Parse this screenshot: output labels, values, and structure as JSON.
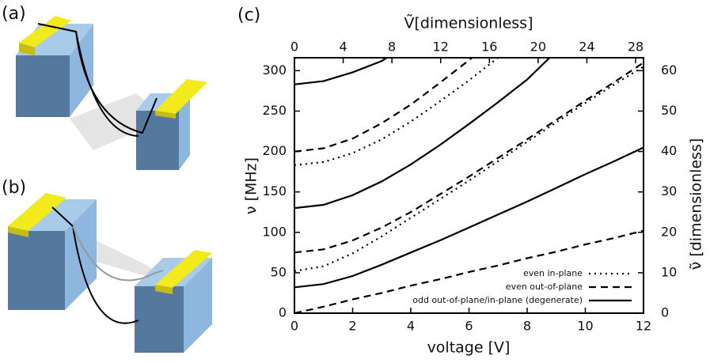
{
  "panels": {
    "a": "(a)",
    "b": "(b)"
  },
  "chart_data": {
    "type": "line",
    "panel_label": "(c)",
    "xlabel": "voltage [V]",
    "ylabel": "ν [MHz]",
    "x2label": "Ṽ[dimensionless]",
    "y2label": "ν̃ [dimensionless]",
    "x": [
      0,
      1,
      2,
      3,
      4,
      5,
      6,
      7,
      8,
      9,
      10,
      11,
      12
    ],
    "xlim": [
      0,
      12
    ],
    "xticks": [
      0,
      2,
      4,
      6,
      8,
      10,
      12
    ],
    "ylim": [
      0,
      316
    ],
    "yticks": [
      0,
      50,
      100,
      150,
      200,
      250,
      300
    ],
    "x2lim": [
      0,
      28.65
    ],
    "x2ticks": [
      0,
      4,
      8,
      12,
      16,
      20,
      24,
      28
    ],
    "y2lim": [
      0,
      63.2
    ],
    "y2ticks": [
      0,
      10,
      20,
      30,
      40,
      50,
      60
    ],
    "legend": "lower right",
    "series": [
      {
        "name": "even in-plane",
        "color": "#000000",
        "dash": "dotted",
        "lines": [
          [
            52,
            58,
            74,
            95,
            118,
            141,
            164,
            188,
            212,
            236,
            260,
            283,
            305
          ],
          [
            183,
            187,
            198,
            215,
            237,
            262,
            288,
            316,
            343,
            null,
            null,
            null,
            null
          ]
        ]
      },
      {
        "name": "even out-of-plane",
        "color": "#000000",
        "dash": "dashed",
        "lines": [
          [
            0,
            8,
            17,
            25,
            34,
            42,
            51,
            59,
            68,
            76,
            85,
            93,
            102
          ],
          [
            75,
            79,
            90,
            106,
            125,
            147,
            169,
            192,
            215,
            239,
            263,
            286,
            310
          ],
          [
            200,
            204,
            216,
            235,
            258,
            285,
            313,
            341,
            null,
            null,
            null,
            null,
            null
          ]
        ]
      },
      {
        "name": "odd out-of-plane/in-plane (degenerate)",
        "color": "#000000",
        "dash": "solid",
        "lines": [
          [
            32,
            36,
            46,
            60,
            75,
            90,
            106,
            122,
            138,
            155,
            172,
            188,
            205
          ],
          [
            130,
            134,
            146,
            163,
            184,
            208,
            234,
            261,
            289,
            324,
            null,
            null,
            null
          ],
          [
            283,
            287,
            298,
            312,
            335,
            null,
            null,
            null,
            null,
            null,
            null,
            null,
            null
          ]
        ]
      }
    ]
  }
}
